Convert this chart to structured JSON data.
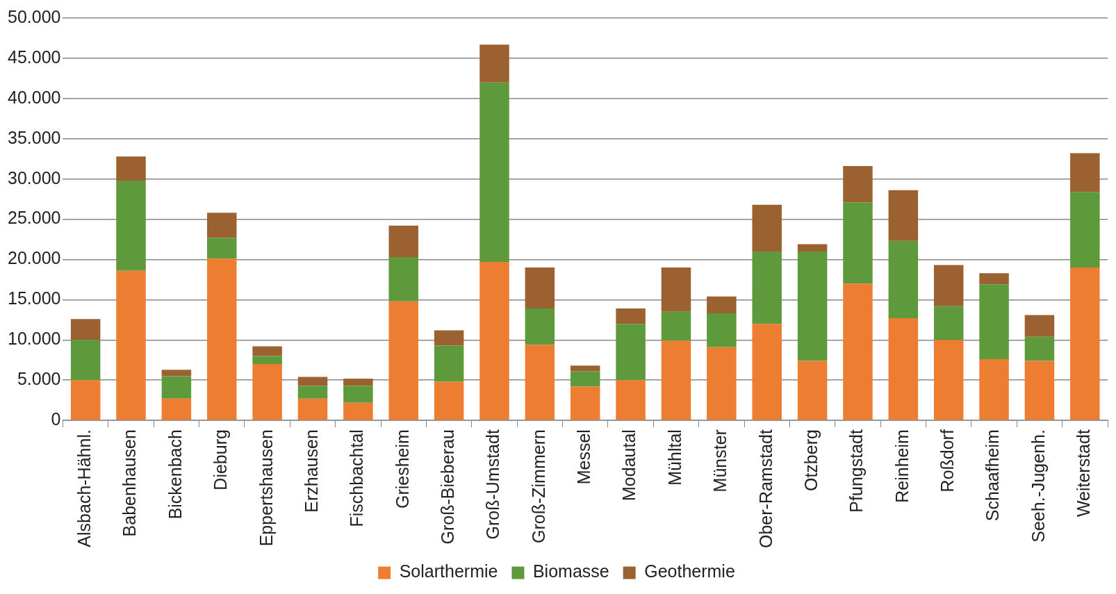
{
  "chart_data": {
    "type": "bar",
    "stacked": true,
    "categories": [
      "Alsbach-Hähnl.",
      "Babenhausen",
      "Bickenbach",
      "Dieburg",
      "Eppertshausen",
      "Erzhausen",
      "Fischbachtal",
      "Griesheim",
      "Groß-Bieberau",
      "Groß-Umstadt",
      "Groß-Zimmern",
      "Messel",
      "Modautal",
      "Mühltal",
      "Münster",
      "Ober-Ramstadt",
      "Otzberg",
      "Pfungstadt",
      "Reinheim",
      "Roßdorf",
      "Schaafheim",
      "Seeh.-Jugenh.",
      "Weiterstadt"
    ],
    "series": [
      {
        "name": "Solarthermie",
        "color": "#ed7d31",
        "values": [
          5000,
          18600,
          2700,
          20100,
          7000,
          2700,
          2200,
          14800,
          4800,
          19700,
          9400,
          4200,
          5000,
          9900,
          9100,
          12000,
          7400,
          17000,
          12700,
          10000,
          7600,
          7400,
          19000
        ]
      },
      {
        "name": "Biomasse",
        "color": "#5e9a3c",
        "values": [
          5000,
          11200,
          2800,
          2600,
          1000,
          1600,
          2100,
          5500,
          4500,
          22300,
          4500,
          1900,
          7000,
          3600,
          4200,
          9000,
          13600,
          10100,
          9600,
          4200,
          9300,
          3000,
          9400
        ]
      },
      {
        "name": "Geothermie",
        "color": "#9c6130",
        "values": [
          2600,
          3000,
          800,
          3100,
          1200,
          1100,
          900,
          3900,
          1900,
          4700,
          5100,
          700,
          1900,
          5500,
          2100,
          5800,
          900,
          4500,
          6300,
          5100,
          1400,
          2700,
          4800
        ]
      }
    ],
    "ylim": [
      0,
      50000
    ],
    "yticks": [
      {
        "value": 0,
        "label": "0"
      },
      {
        "value": 5000,
        "label": "5.000"
      },
      {
        "value": 10000,
        "label": "10.000"
      },
      {
        "value": 15000,
        "label": "15.000"
      },
      {
        "value": 20000,
        "label": "20.000"
      },
      {
        "value": 25000,
        "label": "25.000"
      },
      {
        "value": 30000,
        "label": "30.000"
      },
      {
        "value": 35000,
        "label": "35.000"
      },
      {
        "value": 40000,
        "label": "40.000"
      },
      {
        "value": 45000,
        "label": "45.000"
      },
      {
        "value": 50000,
        "label": "50.000"
      }
    ],
    "grid": "y",
    "legend": "bottom"
  }
}
